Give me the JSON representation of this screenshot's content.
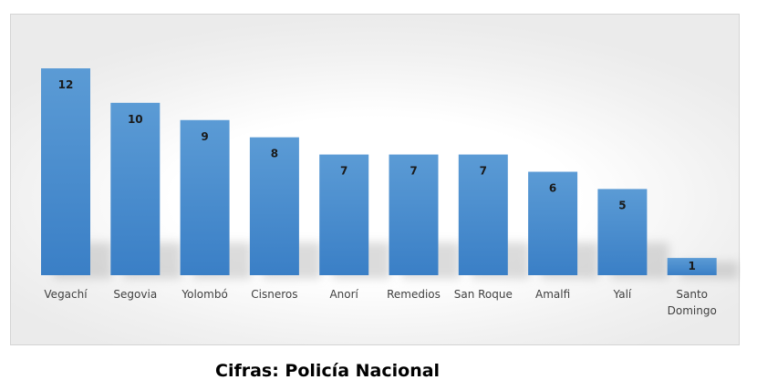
{
  "caption": "Cifras: Policía Nacional",
  "colors": {
    "bar_top": "#5b9bd5",
    "bar_bottom": "#3a7fc6"
  },
  "chart_data": {
    "type": "bar",
    "title": "",
    "xlabel": "",
    "ylabel": "",
    "ylim": [
      0,
      12
    ],
    "grid": false,
    "categories": [
      "Vegachí",
      "Segovia",
      "Yolombó",
      "Cisneros",
      "Anorí",
      "Remedios",
      "San Roque",
      "Amalfi",
      "Yalí",
      "Santo Domingo"
    ],
    "values": [
      12,
      10,
      9,
      8,
      7,
      7,
      7,
      6,
      5,
      1
    ]
  }
}
